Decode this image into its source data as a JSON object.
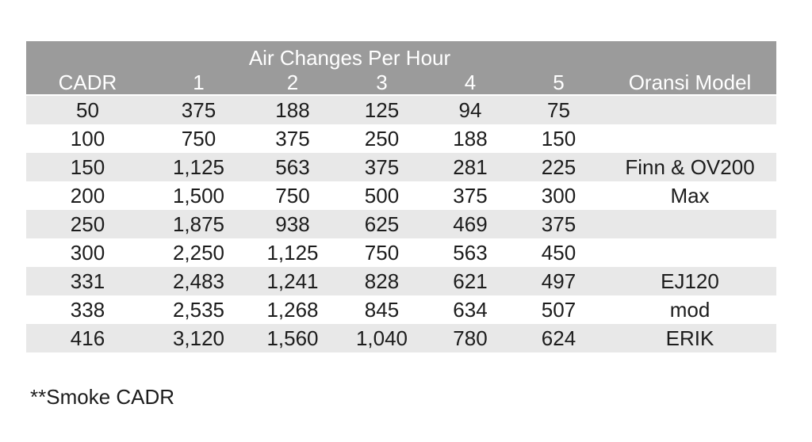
{
  "colors": {
    "header_bg": "#9b9b9b",
    "header_text": "#ffffff",
    "stripe_row_bg": "#e8e8e8",
    "plain_row_bg": "#ffffff",
    "body_text": "#1c1c1c",
    "page_bg": "#ffffff"
  },
  "table": {
    "title": "Air Changes Per Hour",
    "columns": [
      "CADR",
      "1",
      "2",
      "3",
      "4",
      "5",
      "Oransi Model"
    ],
    "rows": [
      [
        "50",
        "375",
        "188",
        "125",
        "94",
        "75",
        ""
      ],
      [
        "100",
        "750",
        "375",
        "250",
        "188",
        "150",
        ""
      ],
      [
        "150",
        "1,125",
        "563",
        "375",
        "281",
        "225",
        "Finn & OV200"
      ],
      [
        "200",
        "1,500",
        "750",
        "500",
        "375",
        "300",
        "Max"
      ],
      [
        "250",
        "1,875",
        "938",
        "625",
        "469",
        "375",
        ""
      ],
      [
        "300",
        "2,250",
        "1,125",
        "750",
        "563",
        "450",
        ""
      ],
      [
        "331",
        "2,483",
        "1,241",
        "828",
        "621",
        "497",
        "EJ120"
      ],
      [
        "338",
        "2,535",
        "1,268",
        "845",
        "634",
        "507",
        "mod"
      ],
      [
        "416",
        "3,120",
        "1,560",
        "1,040",
        "780",
        "624",
        "ERIK"
      ]
    ]
  },
  "footnote": "**Smoke CADR",
  "chart_data": {
    "type": "table",
    "title": "Air Changes Per Hour",
    "columns": [
      "CADR",
      "1",
      "2",
      "3",
      "4",
      "5",
      "Oransi Model"
    ],
    "rows": [
      [
        50,
        375,
        188,
        125,
        94,
        75,
        ""
      ],
      [
        100,
        750,
        375,
        250,
        188,
        150,
        ""
      ],
      [
        150,
        1125,
        563,
        375,
        281,
        225,
        "Finn & OV200"
      ],
      [
        200,
        1500,
        750,
        500,
        375,
        300,
        "Max"
      ],
      [
        250,
        1875,
        938,
        625,
        469,
        375,
        ""
      ],
      [
        300,
        2250,
        1125,
        750,
        563,
        450,
        ""
      ],
      [
        331,
        2483,
        1241,
        828,
        621,
        497,
        "EJ120"
      ],
      [
        338,
        2535,
        1268,
        845,
        634,
        507,
        "mod"
      ],
      [
        416,
        3120,
        1560,
        1040,
        780,
        624,
        "ERIK"
      ]
    ],
    "footnote": "**Smoke CADR",
    "layout": {
      "header_rows_merged_title": true,
      "row_striping": "odd-rows-gray"
    }
  }
}
